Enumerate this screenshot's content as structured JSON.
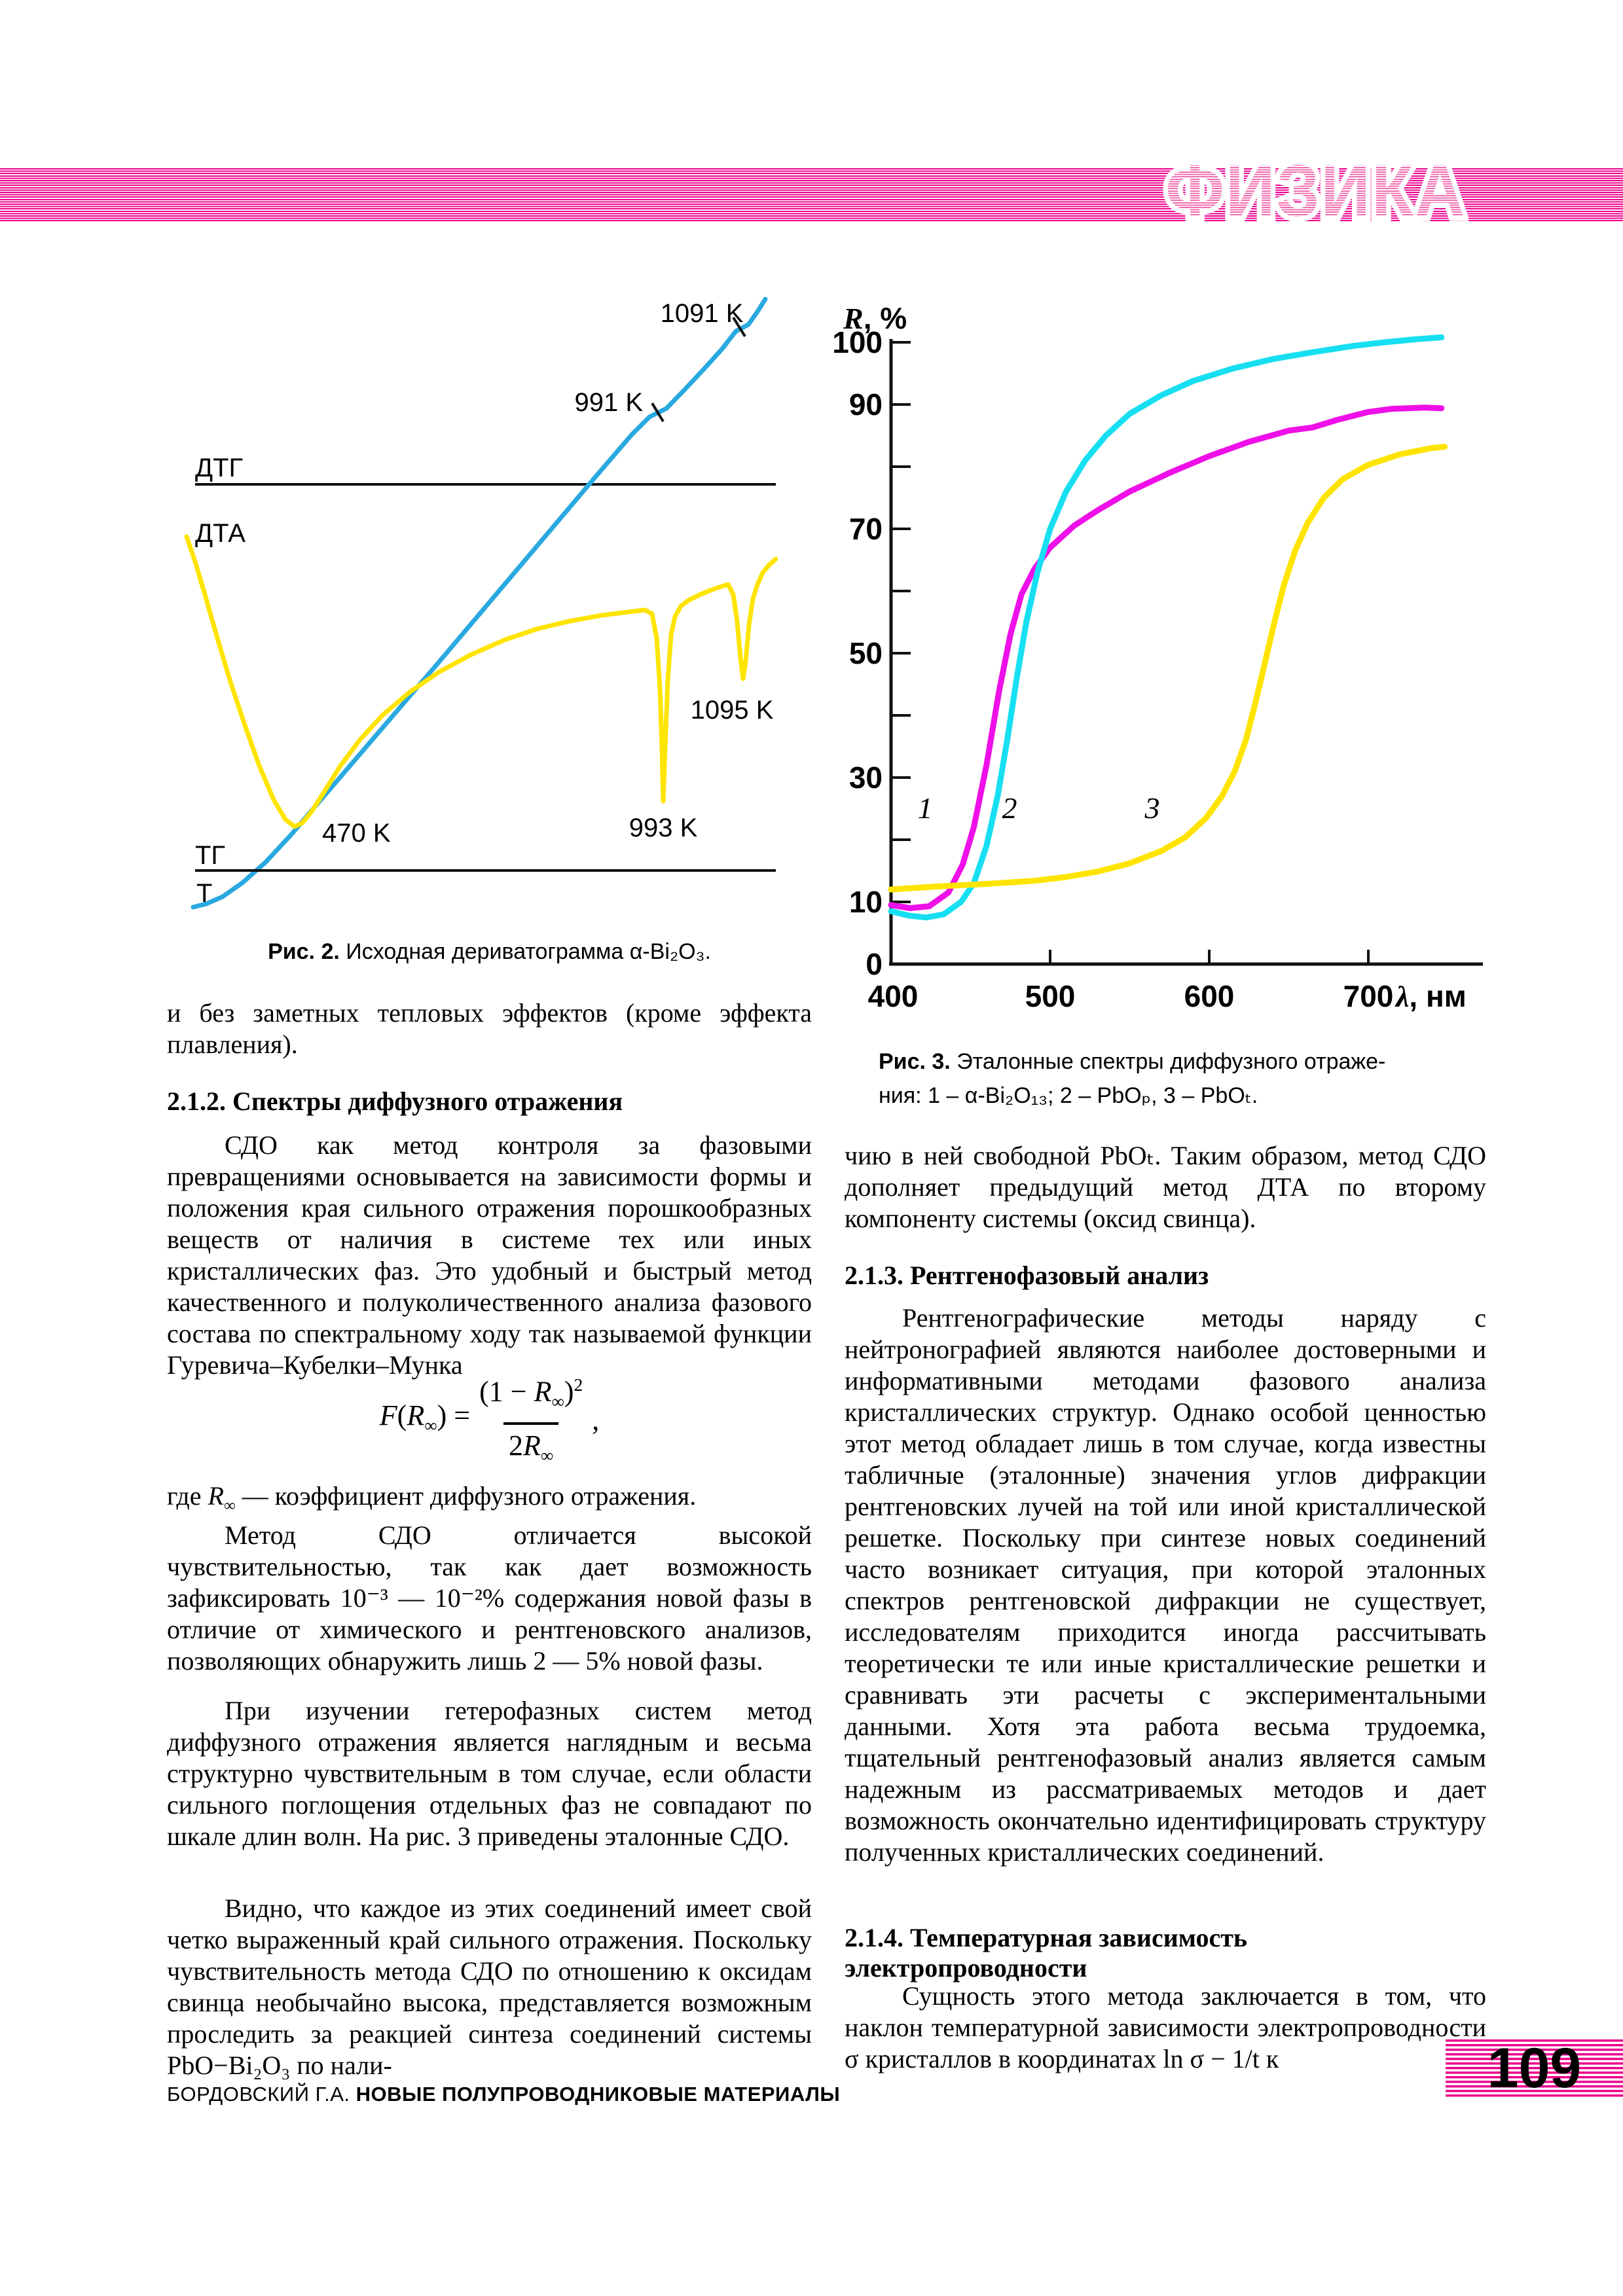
{
  "header": {
    "title": "ФИЗИКА",
    "stripe_color": "#ec008c"
  },
  "page_number": "109",
  "footer": {
    "author": "БОРДОВСКИЙ Г.А. ",
    "book": "НОВЫЕ ПОЛУПРОВОДНИКОВЫЕ МАТЕРИАЛЫ"
  },
  "figure2": {
    "curve_labels": {
      "dtg": "ДТГ",
      "dta": "ДТА",
      "tg": "ТГ",
      "t": "Т"
    },
    "annotations": {
      "k1091": "1091 K",
      "k991": "991 K",
      "k470": "470 K",
      "k993": "993 K",
      "k1095": "1095 K"
    },
    "caption_label": "Рис. 2.",
    "caption_text": " Исходная дериватограмма α-Bi₂O₃.",
    "colors": {
      "t_curve": "#2aa9e0",
      "dta_curve": "#ffe400"
    },
    "curves": {
      "t_curve": [
        [
          55,
          956
        ],
        [
          75,
          951
        ],
        [
          100,
          940
        ],
        [
          130,
          919
        ],
        [
          165,
          888
        ],
        [
          205,
          845
        ],
        [
          250,
          792
        ],
        [
          310,
          722
        ],
        [
          370,
          652
        ],
        [
          430,
          582
        ],
        [
          490,
          511
        ],
        [
          550,
          440
        ],
        [
          610,
          369
        ],
        [
          670,
          298
        ],
        [
          725,
          234
        ],
        [
          752,
          207
        ],
        [
          778,
          194
        ],
        [
          806,
          165
        ],
        [
          836,
          133
        ],
        [
          863,
          103
        ],
        [
          884,
          76
        ],
        [
          903,
          66
        ],
        [
          917,
          46
        ],
        [
          929,
          27
        ]
      ],
      "dta_curve": [
        [
          45,
          390
        ],
        [
          58,
          428
        ],
        [
          74,
          482
        ],
        [
          92,
          545
        ],
        [
          112,
          612
        ],
        [
          134,
          678
        ],
        [
          156,
          740
        ],
        [
          178,
          792
        ],
        [
          196,
          822
        ],
        [
          210,
          833
        ],
        [
          222,
          827
        ],
        [
          236,
          810
        ],
        [
          255,
          780
        ],
        [
          280,
          740
        ],
        [
          310,
          700
        ],
        [
          345,
          662
        ],
        [
          385,
          628
        ],
        [
          430,
          597
        ],
        [
          480,
          570
        ],
        [
          530,
          548
        ],
        [
          580,
          531
        ],
        [
          630,
          519
        ],
        [
          680,
          510
        ],
        [
          720,
          505
        ],
        [
          745,
          502
        ],
        [
          756,
          508
        ],
        [
          763,
          545
        ],
        [
          768,
          620
        ],
        [
          771,
          710
        ],
        [
          773,
          794
        ],
        [
          776,
          710
        ],
        [
          780,
          610
        ],
        [
          785,
          540
        ],
        [
          791,
          512
        ],
        [
          800,
          496
        ],
        [
          812,
          487
        ],
        [
          828,
          479
        ],
        [
          845,
          472
        ],
        [
          862,
          466
        ],
        [
          872,
          463
        ],
        [
          880,
          478
        ],
        [
          886,
          520
        ],
        [
          891,
          575
        ],
        [
          895,
          607
        ],
        [
          899,
          580
        ],
        [
          904,
          525
        ],
        [
          910,
          485
        ],
        [
          917,
          463
        ],
        [
          925,
          445
        ],
        [
          934,
          434
        ],
        [
          945,
          424
        ]
      ]
    }
  },
  "figure3": {
    "ylabel_italic": "R",
    "ylabel_rest": ", %",
    "xlabel_italic": "λ",
    "xlabel_rest": ", нм",
    "y_tick_labels": [
      "100",
      "90",
      "70",
      "50",
      "30",
      "10",
      "0"
    ],
    "x_tick_labels": [
      "400",
      "500",
      "600",
      "700"
    ],
    "curve_numbers": [
      "1",
      "2",
      "3"
    ],
    "caption_label": "Рис. 3.",
    "caption_line1": " Эталонные спектры диффузного отраже-",
    "caption_line2": "ния: 1 – α-Bi₂O₁₃; 2 – PbOₚ, 3 – PbOₜ."
  },
  "chart_data": {
    "type": "line",
    "title": "Рис. 3. Эталонные спектры диффузного отражения: 1 – α-Bi₂O₁₃; 2 – PbOₚ, 3 – PbOₜ.",
    "xlabel": "λ, нм",
    "ylabel": "R, %",
    "xlim": [
      400,
      770
    ],
    "ylim": [
      0,
      105
    ],
    "x_ticks": [
      400,
      500,
      600,
      700
    ],
    "y_ticks_labeled": [
      0,
      10,
      30,
      50,
      70,
      90,
      100
    ],
    "y_ticks_minor": [
      20,
      40,
      60,
      80
    ],
    "grid": false,
    "legend_position": "none",
    "series": [
      {
        "id": "curve1",
        "name": "1 – α-Bi₂O₁₃",
        "color": "#ef0fe8",
        "x": [
          400,
          412,
          424,
          436,
          445,
          452,
          460,
          468,
          475,
          482,
          490,
          500,
          515,
          530,
          550,
          575,
          600,
          625,
          650,
          665,
          680,
          700,
          715,
          735,
          746
        ],
        "y": [
          9.5,
          9,
          9.3,
          11.5,
          16,
          22,
          32,
          44,
          53,
          59.5,
          63.5,
          67,
          70.5,
          73,
          76,
          79,
          81.7,
          84,
          85.8,
          86.3,
          87.5,
          88.8,
          89.3,
          89.5,
          89.4
        ]
      },
      {
        "id": "curve2",
        "name": "2 – PbOₚ",
        "color": "#17dff2",
        "x": [
          400,
          411,
          422,
          433,
          444,
          452,
          460,
          467,
          473,
          479,
          485,
          492,
          500,
          510,
          522,
          535,
          550,
          570,
          590,
          615,
          640,
          665,
          690,
          710,
          730,
          746
        ],
        "y": [
          8.5,
          7.8,
          7.5,
          8,
          10,
          13,
          19,
          27,
          36,
          46,
          55,
          63,
          70,
          76,
          81,
          85,
          88.5,
          91.5,
          93.8,
          95.8,
          97.3,
          98.4,
          99.4,
          100,
          100.5,
          100.8
        ]
      },
      {
        "id": "curve3",
        "name": "3 – PbOₜ",
        "color": "#ffe400",
        "x": [
          400,
          430,
          460,
          490,
          510,
          530,
          550,
          570,
          585,
          598,
          608,
          616,
          623,
          629,
          635,
          641,
          647,
          654,
          662,
          672,
          684,
          700,
          720,
          740,
          748
        ],
        "y": [
          12,
          12.5,
          12.9,
          13.4,
          14,
          14.9,
          16.2,
          18.2,
          20.4,
          23.5,
          27,
          31,
          36,
          42,
          48.5,
          55,
          61,
          66.5,
          71,
          75,
          78,
          80.3,
          82,
          83,
          83.2
        ]
      }
    ]
  },
  "formula": {
    "func": "F",
    "open": "(",
    "r": "R",
    "sub_inf": "∞",
    "close_eq": ") = ",
    "num_pre": "(1 − ",
    "num_close": ")",
    "power": "2",
    "den_coef": "2",
    "comma": ","
  },
  "sections": {
    "intro_tail": "и без заметных тепловых эффектов (кроме эффекта плавления).",
    "h212": "2.1.2. Спектры диффузного отражения",
    "p_sdo": "СДО как метод контроля за фазовыми превращениями основывается на зависимости формы и положения края сильного отражения порошкообразных веществ от наличия в системе тех или иных кристаллических фаз. Это удобный и быстрый метод качественного и полуколичественного анализа фазового состава по спектральному ходу так называемой функции Гуревича–Кубелки–Мунка",
    "gde_pre": "где ",
    "gde_r": "R",
    "gde_sub": "∞",
    "gde_post": " — коэффициент диффузного отражения.",
    "p_metod": "Метод СДО отличается высокой чувствительностью, так как дает возможность зафиксировать 10⁻³ — 10⁻²% содержания новой фазы в отличие от химического и рентгеновского анализов, позволяющих обнаружить лишь 2 — 5% новой фазы.",
    "p_izuch": "При изучении гетерофазных систем метод диффузного отражения является наглядным и весьма структурно чувствительным в том случае, если области сильного поглощения отдельных фаз не совпадают по шкале длин волн. На рис. 3 приведены эталонные СДО.",
    "p_vidno": "Видно, что каждое из этих соединений имеет свой четко выраженный край сильного отражения. Поскольку чувствительность метода СДО по отношению к оксидам свинца необычайно высока, представляется возможным проследить за реакцией синтеза соединений системы PbO−Bi₂O₃ по нали-",
    "p_chiyu": "чию в ней свободной PbOₜ. Таким образом, метод СДО дополняет предыдущий метод ДТА по второму компоненту системы (оксид свинца).",
    "h213": "2.1.3. Рентгенофазовый анализ",
    "p_rentgen": "Рентгенографические методы наряду с нейтронографией являются наиболее достоверными и информативными методами фазового анализа кристаллических структур. Однако особой ценностью этот метод обладает лишь в том случае, когда известны табличные (эталонные) значения углов дифракции рентгеновских лучей на той или иной кристаллической решетке. Поскольку при синтезе новых соединений часто возникает ситуация, при которой эталонных спектров рентгеновской дифракции не существует, исследователям приходится иногда рассчитывать теоретически те или иные кристаллические решетки и сравнивать эти расчеты с экспериментальными данными. Хотя эта работа весьма трудоемка, тщательный рентгенофазовый анализ является самым надежным из рассматриваемых методов и дает возможность окончательно идентифицировать структуру полученных кристаллических соединений.",
    "h214": "2.1.4. Температурная зависимость электропроводности",
    "p_sushchnost": "Сущность этого метода заключается в том, что наклон температурной зависимости электропроводности σ кристаллов в координатах ln σ − 1/t к"
  }
}
